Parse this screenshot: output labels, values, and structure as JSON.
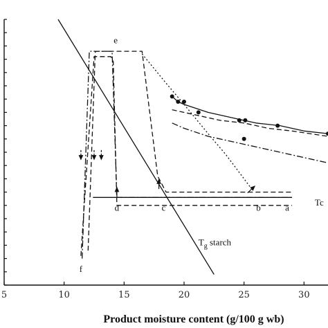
{
  "chart_data": {
    "type": "line",
    "title": "",
    "xlabel": "Product moisture content (g/100 g wb)",
    "ylabel": "",
    "xlim": [
      5,
      32
    ],
    "ylim": [
      0,
      100
    ],
    "x_ticks": [
      5,
      10,
      15,
      20,
      25,
      30
    ],
    "x_tick_labels": [
      "5",
      "10",
      "15",
      "20",
      "25",
      "30"
    ],
    "y_ticks": [
      0,
      5,
      10,
      15,
      20,
      25,
      30,
      35,
      40,
      45,
      50,
      55,
      60,
      65,
      70,
      75,
      80,
      85,
      90,
      95,
      100
    ],
    "grid": false,
    "legend": "none",
    "series": [
      {
        "style": "solid",
        "x": [
          9.5,
          22.5
        ],
        "y": [
          100,
          4
        ]
      },
      {
        "style": "dash-dot",
        "x": [
          19,
          20,
          22,
          24,
          26,
          28,
          30,
          32
        ],
        "y": [
          61,
          59,
          56,
          54,
          52,
          50,
          48,
          46
        ]
      },
      {
        "style": "dashed",
        "x": [
          19,
          21,
          23,
          25,
          27,
          29,
          32
        ],
        "y": [
          66,
          64,
          62,
          61,
          59,
          58,
          56
        ]
      },
      {
        "style": "dotted",
        "x": [
          16.5,
          18.5,
          20,
          22,
          23.5,
          25,
          25.5
        ],
        "y": [
          87,
          76,
          68,
          57,
          49,
          40,
          37
        ]
      },
      {
        "style": "dashed",
        "x": [
          12,
          12.6,
          13.4,
          14.5,
          15.5,
          16.5,
          17.8,
          18.5,
          29
        ],
        "y": [
          13,
          88,
          88,
          88,
          88,
          88,
          41,
          35,
          35
        ]
      },
      {
        "style": "dash-dot",
        "x": [
          11.5,
          12.1,
          12.5,
          12.7,
          13.4,
          14,
          14.4,
          29
        ],
        "y": [
          10,
          88,
          88,
          88,
          88,
          88,
          33,
          33
        ]
      },
      {
        "style": "dashed",
        "x": [
          11.4,
          12.5,
          13.6,
          13.9,
          14.1,
          14.4,
          29
        ],
        "y": [
          11,
          86,
          86,
          86,
          84,
          30,
          30
        ]
      },
      {
        "style": "solid",
        "x": [
          12.4,
          29
        ],
        "y": [
          33,
          33
        ]
      },
      {
        "style": "solid",
        "x": [
          19,
          19.5,
          20,
          22,
          24,
          26,
          28,
          30,
          32
        ],
        "y": [
          71,
          69,
          68,
          65,
          63,
          61,
          60,
          58,
          57
        ]
      }
    ],
    "points": {
      "x": [
        19,
        19.5,
        20,
        21.2,
        24.6,
        25.1,
        25,
        27.8,
        32
      ],
      "y": [
        71,
        69,
        69,
        65,
        62,
        62,
        55,
        60,
        57
      ]
    },
    "point_labels": [
      {
        "text": "e",
        "x": 14.3,
        "y": 91
      },
      {
        "text": "d",
        "x": 14.4,
        "y": 28
      },
      {
        "text": "c",
        "x": 18.3,
        "y": 28
      },
      {
        "text": "b",
        "x": 26.2,
        "y": 28
      },
      {
        "text": "a",
        "x": 28.6,
        "y": 28
      },
      {
        "text": "f",
        "x": 11.4,
        "y": 5
      }
    ],
    "curve_labels": [
      {
        "text": "T",
        "sub": "g",
        "suffix": " starch",
        "x": 21.2,
        "y": 15
      },
      {
        "text": "Tc",
        "sub": "",
        "suffix": "",
        "x": 30.9,
        "y": 30
      }
    ],
    "arrows": [
      {
        "style": "dashed",
        "at": [
          11.4,
          49
        ],
        "dir": "down"
      },
      {
        "style": "dashed",
        "at": [
          12.5,
          49
        ],
        "dir": "down"
      },
      {
        "style": "dashed",
        "at": [
          13.1,
          49
        ],
        "dir": "down"
      },
      {
        "style": "solid",
        "at": [
          14.4,
          35
        ],
        "dir": "up"
      },
      {
        "style": "solid",
        "at": [
          17.9,
          38
        ],
        "dir": "up"
      },
      {
        "style": "solid",
        "at": [
          25.6,
          36
        ],
        "dir": "up-right"
      }
    ]
  }
}
